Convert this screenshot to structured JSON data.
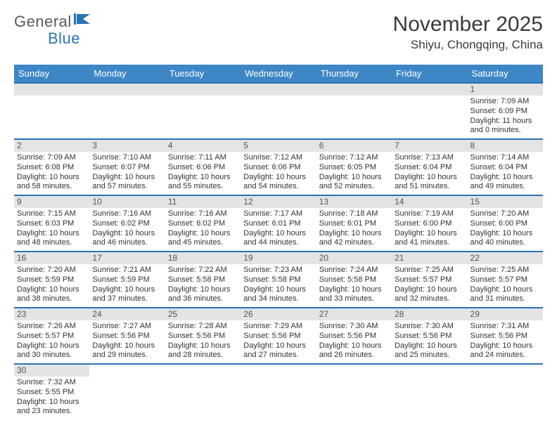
{
  "logo": {
    "part1": "General",
    "part2": "Blue"
  },
  "title": "November 2025",
  "location": "Shiyu, Chongqing, China",
  "colors": {
    "header_bg": "#3d87c7",
    "header_border": "#2a72b5",
    "daynum_bg": "#e4e4e4",
    "text": "#333333",
    "logo_gray": "#5a5a5a",
    "logo_blue": "#2a72b5"
  },
  "weekdays": [
    "Sunday",
    "Monday",
    "Tuesday",
    "Wednesday",
    "Thursday",
    "Friday",
    "Saturday"
  ],
  "weeks": [
    [
      null,
      null,
      null,
      null,
      null,
      null,
      {
        "n": "1",
        "sr": "Sunrise: 7:09 AM",
        "ss": "Sunset: 6:09 PM",
        "dl": "Daylight: 11 hours and 0 minutes."
      }
    ],
    [
      {
        "n": "2",
        "sr": "Sunrise: 7:09 AM",
        "ss": "Sunset: 6:08 PM",
        "dl": "Daylight: 10 hours and 58 minutes."
      },
      {
        "n": "3",
        "sr": "Sunrise: 7:10 AM",
        "ss": "Sunset: 6:07 PM",
        "dl": "Daylight: 10 hours and 57 minutes."
      },
      {
        "n": "4",
        "sr": "Sunrise: 7:11 AM",
        "ss": "Sunset: 6:06 PM",
        "dl": "Daylight: 10 hours and 55 minutes."
      },
      {
        "n": "5",
        "sr": "Sunrise: 7:12 AM",
        "ss": "Sunset: 6:06 PM",
        "dl": "Daylight: 10 hours and 54 minutes."
      },
      {
        "n": "6",
        "sr": "Sunrise: 7:12 AM",
        "ss": "Sunset: 6:05 PM",
        "dl": "Daylight: 10 hours and 52 minutes."
      },
      {
        "n": "7",
        "sr": "Sunrise: 7:13 AM",
        "ss": "Sunset: 6:04 PM",
        "dl": "Daylight: 10 hours and 51 minutes."
      },
      {
        "n": "8",
        "sr": "Sunrise: 7:14 AM",
        "ss": "Sunset: 6:04 PM",
        "dl": "Daylight: 10 hours and 49 minutes."
      }
    ],
    [
      {
        "n": "9",
        "sr": "Sunrise: 7:15 AM",
        "ss": "Sunset: 6:03 PM",
        "dl": "Daylight: 10 hours and 48 minutes."
      },
      {
        "n": "10",
        "sr": "Sunrise: 7:16 AM",
        "ss": "Sunset: 6:02 PM",
        "dl": "Daylight: 10 hours and 46 minutes."
      },
      {
        "n": "11",
        "sr": "Sunrise: 7:16 AM",
        "ss": "Sunset: 6:02 PM",
        "dl": "Daylight: 10 hours and 45 minutes."
      },
      {
        "n": "12",
        "sr": "Sunrise: 7:17 AM",
        "ss": "Sunset: 6:01 PM",
        "dl": "Daylight: 10 hours and 44 minutes."
      },
      {
        "n": "13",
        "sr": "Sunrise: 7:18 AM",
        "ss": "Sunset: 6:01 PM",
        "dl": "Daylight: 10 hours and 42 minutes."
      },
      {
        "n": "14",
        "sr": "Sunrise: 7:19 AM",
        "ss": "Sunset: 6:00 PM",
        "dl": "Daylight: 10 hours and 41 minutes."
      },
      {
        "n": "15",
        "sr": "Sunrise: 7:20 AM",
        "ss": "Sunset: 6:00 PM",
        "dl": "Daylight: 10 hours and 40 minutes."
      }
    ],
    [
      {
        "n": "16",
        "sr": "Sunrise: 7:20 AM",
        "ss": "Sunset: 5:59 PM",
        "dl": "Daylight: 10 hours and 38 minutes."
      },
      {
        "n": "17",
        "sr": "Sunrise: 7:21 AM",
        "ss": "Sunset: 5:59 PM",
        "dl": "Daylight: 10 hours and 37 minutes."
      },
      {
        "n": "18",
        "sr": "Sunrise: 7:22 AM",
        "ss": "Sunset: 5:58 PM",
        "dl": "Daylight: 10 hours and 36 minutes."
      },
      {
        "n": "19",
        "sr": "Sunrise: 7:23 AM",
        "ss": "Sunset: 5:58 PM",
        "dl": "Daylight: 10 hours and 34 minutes."
      },
      {
        "n": "20",
        "sr": "Sunrise: 7:24 AM",
        "ss": "Sunset: 5:58 PM",
        "dl": "Daylight: 10 hours and 33 minutes."
      },
      {
        "n": "21",
        "sr": "Sunrise: 7:25 AM",
        "ss": "Sunset: 5:57 PM",
        "dl": "Daylight: 10 hours and 32 minutes."
      },
      {
        "n": "22",
        "sr": "Sunrise: 7:25 AM",
        "ss": "Sunset: 5:57 PM",
        "dl": "Daylight: 10 hours and 31 minutes."
      }
    ],
    [
      {
        "n": "23",
        "sr": "Sunrise: 7:26 AM",
        "ss": "Sunset: 5:57 PM",
        "dl": "Daylight: 10 hours and 30 minutes."
      },
      {
        "n": "24",
        "sr": "Sunrise: 7:27 AM",
        "ss": "Sunset: 5:56 PM",
        "dl": "Daylight: 10 hours and 29 minutes."
      },
      {
        "n": "25",
        "sr": "Sunrise: 7:28 AM",
        "ss": "Sunset: 5:56 PM",
        "dl": "Daylight: 10 hours and 28 minutes."
      },
      {
        "n": "26",
        "sr": "Sunrise: 7:29 AM",
        "ss": "Sunset: 5:56 PM",
        "dl": "Daylight: 10 hours and 27 minutes."
      },
      {
        "n": "27",
        "sr": "Sunrise: 7:30 AM",
        "ss": "Sunset: 5:56 PM",
        "dl": "Daylight: 10 hours and 26 minutes."
      },
      {
        "n": "28",
        "sr": "Sunrise: 7:30 AM",
        "ss": "Sunset: 5:56 PM",
        "dl": "Daylight: 10 hours and 25 minutes."
      },
      {
        "n": "29",
        "sr": "Sunrise: 7:31 AM",
        "ss": "Sunset: 5:56 PM",
        "dl": "Daylight: 10 hours and 24 minutes."
      }
    ],
    [
      {
        "n": "30",
        "sr": "Sunrise: 7:32 AM",
        "ss": "Sunset: 5:55 PM",
        "dl": "Daylight: 10 hours and 23 minutes."
      },
      null,
      null,
      null,
      null,
      null,
      null
    ]
  ]
}
